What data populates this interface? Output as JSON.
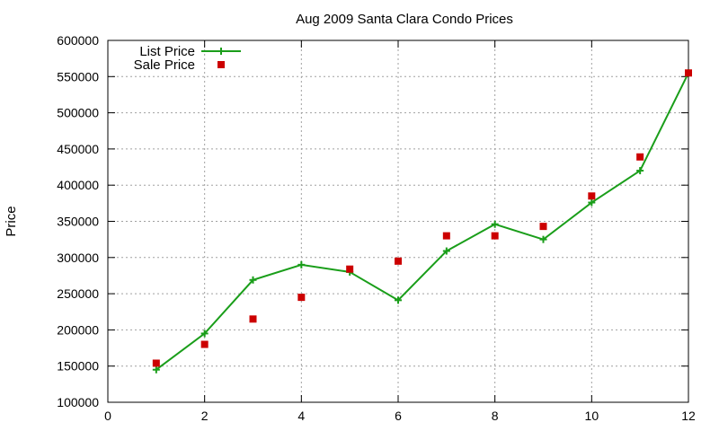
{
  "chart_data": {
    "type": "line",
    "title": "Aug 2009 Santa Clara Condo Prices",
    "xlabel": "",
    "ylabel": "Price",
    "xlim": [
      0,
      12
    ],
    "ylim": [
      100000,
      600000
    ],
    "xticks": [
      0,
      2,
      4,
      6,
      8,
      10,
      12
    ],
    "yticks": [
      100000,
      150000,
      200000,
      250000,
      300000,
      350000,
      400000,
      450000,
      500000,
      550000,
      600000
    ],
    "grid": true,
    "legend_position": "top-left",
    "series": [
      {
        "name": "List Price",
        "style": "line-with-plus-markers",
        "color": "#1a9e1a",
        "x": [
          1,
          2,
          3,
          4,
          5,
          6,
          7,
          8,
          9,
          10,
          11,
          12
        ],
        "values": [
          145000,
          195000,
          269000,
          290000,
          280000,
          241000,
          309000,
          346000,
          325000,
          376000,
          420000,
          555000
        ]
      },
      {
        "name": "Sale Price",
        "style": "square-markers",
        "color": "#cc0000",
        "x": [
          1,
          2,
          3,
          4,
          5,
          6,
          7,
          8,
          9,
          10,
          11,
          12
        ],
        "values": [
          154000,
          180000,
          215000,
          245000,
          284000,
          295000,
          330000,
          330000,
          343000,
          385000,
          439000,
          555000
        ]
      }
    ]
  }
}
